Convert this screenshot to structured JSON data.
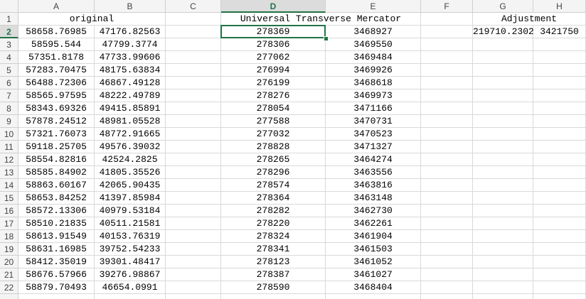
{
  "column_headers": [
    "A",
    "B",
    "C",
    "D",
    "E",
    "F",
    "G",
    "H"
  ],
  "row_numbers": [
    1,
    2,
    3,
    4,
    5,
    6,
    7,
    8,
    9,
    10,
    11,
    12,
    13,
    14,
    15,
    16,
    17,
    18,
    19,
    20,
    21,
    22
  ],
  "group_headers": {
    "original": "original",
    "utm": "Universal Transverse Mercator",
    "adjustment": "Adjustment"
  },
  "adjustment_values": [
    "219710.2302",
    "3421750"
  ],
  "rows": [
    [
      "58658.76985",
      "47176.82563",
      "278369",
      "3468927"
    ],
    [
      "58595.544",
      "47799.3774",
      "278306",
      "3469550"
    ],
    [
      "57351.8178",
      "47733.99606",
      "277062",
      "3469484"
    ],
    [
      "57283.70475",
      "48175.63834",
      "276994",
      "3469926"
    ],
    [
      "56488.72306",
      "46867.49128",
      "276199",
      "3468618"
    ],
    [
      "58565.97595",
      "48222.49789",
      "278276",
      "3469973"
    ],
    [
      "58343.69326",
      "49415.85891",
      "278054",
      "3471166"
    ],
    [
      "57878.24512",
      "48981.05528",
      "277588",
      "3470731"
    ],
    [
      "57321.76073",
      "48772.91665",
      "277032",
      "3470523"
    ],
    [
      "59118.25705",
      "49576.39032",
      "278828",
      "3471327"
    ],
    [
      "58554.82816",
      "42524.2825",
      "278265",
      "3464274"
    ],
    [
      "58585.84902",
      "41805.35526",
      "278296",
      "3463556"
    ],
    [
      "58863.60167",
      "42065.90435",
      "278574",
      "3463816"
    ],
    [
      "58653.84252",
      "41397.85984",
      "278364",
      "3463148"
    ],
    [
      "58572.13306",
      "40979.53184",
      "278282",
      "3462730"
    ],
    [
      "58510.21835",
      "40511.21581",
      "278220",
      "3462261"
    ],
    [
      "58613.91549",
      "40153.76319",
      "278324",
      "3461904"
    ],
    [
      "58631.16985",
      "39752.54233",
      "278341",
      "3461503"
    ],
    [
      "58412.35019",
      "39301.48417",
      "278123",
      "3461052"
    ],
    [
      "58676.57966",
      "39276.98867",
      "278387",
      "3461027"
    ],
    [
      "58879.70493",
      "46654.0991",
      "278590",
      "3468404"
    ]
  ]
}
